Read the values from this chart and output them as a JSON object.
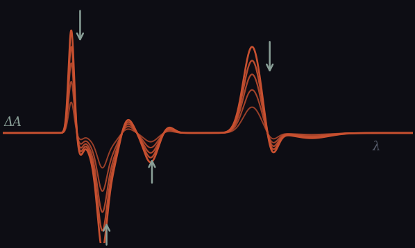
{
  "bg_color": "#0d0d14",
  "line_color": "#c85030",
  "arrow_color": "#8aA098",
  "ylabel": "ΔA",
  "xlabel": "λ",
  "n_curves": 5,
  "figsize": [
    5.98,
    3.58
  ],
  "dpi": 100,
  "curves": [
    {
      "scale": 0.3,
      "lw": 1.4,
      "alpha": 0.75
    },
    {
      "scale": 0.5,
      "lw": 1.5,
      "alpha": 0.8
    },
    {
      "scale": 0.68,
      "lw": 1.6,
      "alpha": 0.85
    },
    {
      "scale": 0.84,
      "lw": 1.7,
      "alpha": 0.92
    },
    {
      "scale": 1.0,
      "lw": 1.9,
      "alpha": 1.0
    }
  ],
  "xlim": [
    0.5,
    9.8
  ],
  "ylim": [
    -3.2,
    3.8
  ]
}
